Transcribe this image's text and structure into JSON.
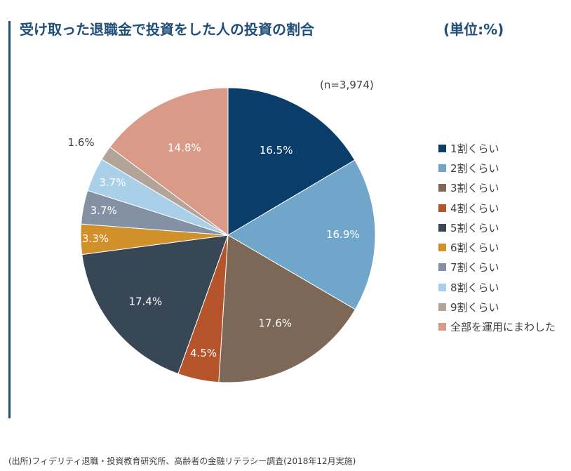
{
  "title": "受け取った退職金で投資をした人の投資の割合",
  "unit": "(単位:%)",
  "sample_size": "(n=3,974)",
  "source": "(出所)フィデリティ退職・投資教育研究所、高齢者の金融リテラシー調査(2018年12月実施)",
  "chart_data": {
    "type": "pie",
    "categories": [
      "1割くらい",
      "2割くらい",
      "3割くらい",
      "4割くらい",
      "5割くらい",
      "6割くらい",
      "7割くらい",
      "8割くらい",
      "9割くらい",
      "全部を運用にまわした"
    ],
    "values": [
      16.5,
      16.9,
      17.6,
      4.5,
      17.4,
      3.3,
      3.7,
      3.7,
      1.6,
      14.8
    ],
    "labels": [
      "16.5%",
      "16.9%",
      "17.6%",
      "4.5%",
      "17.4%",
      "3.3%",
      "3.7%",
      "3.7%",
      "1.6%",
      "14.8%"
    ],
    "colors": [
      "#0b3d6b",
      "#6fa6c9",
      "#7d6857",
      "#b5542a",
      "#374756",
      "#d0902a",
      "#8490a3",
      "#a9d0e8",
      "#b3a49a",
      "#d99a88"
    ],
    "legend_position": "right",
    "start_angle": "12 o'clock, clockwise"
  },
  "legend": [
    {
      "label": "1割くらい"
    },
    {
      "label": "2割くらい"
    },
    {
      "label": "3割くらい"
    },
    {
      "label": "4割くらい"
    },
    {
      "label": "5割くらい"
    },
    {
      "label": "6割くらい"
    },
    {
      "label": "7割くらい"
    },
    {
      "label": "8割くらい"
    },
    {
      "label": "9割くらい"
    },
    {
      "label": "全部を運用にまわした"
    }
  ]
}
